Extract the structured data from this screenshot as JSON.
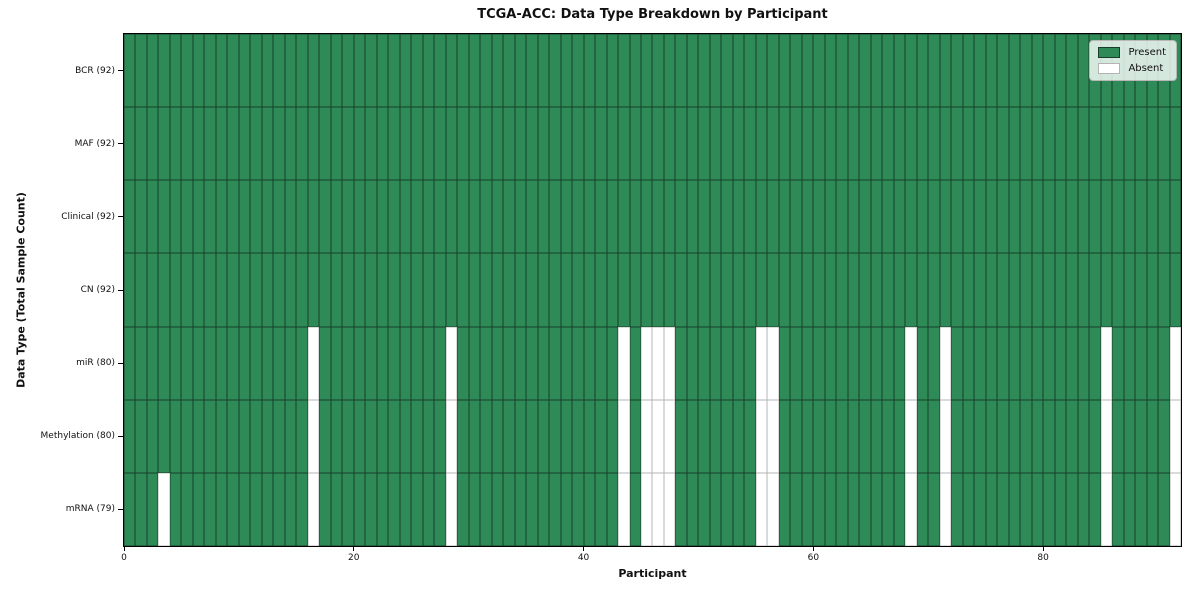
{
  "title": "TCGA-ACC: Data Type Breakdown by Participant",
  "xlabel": "Participant",
  "ylabel": "Data Type (Total Sample Count)",
  "legend": {
    "present_label": "Present",
    "absent_label": "Absent"
  },
  "colors": {
    "present": "#2e8b57",
    "absent": "#ffffff",
    "present_edge": "#173f28",
    "absent_edge": "#b4b4b4"
  },
  "chart_data": {
    "type": "heatmap",
    "title": "TCGA-ACC: Data Type Breakdown by Participant",
    "xlabel": "Participant",
    "ylabel": "Data Type (Total Sample Count)",
    "n_participants": 92,
    "x_range": [
      0,
      92
    ],
    "x_ticks": [
      0,
      20,
      40,
      60,
      80
    ],
    "cell_values_legend": {
      "present": "Present",
      "absent": "Absent"
    },
    "legend_position": "upper right",
    "rows": [
      {
        "label": "BCR (92)",
        "data_type": "BCR",
        "total": 92,
        "absent_participants": []
      },
      {
        "label": "MAF (92)",
        "data_type": "MAF",
        "total": 92,
        "absent_participants": []
      },
      {
        "label": "Clinical (92)",
        "data_type": "Clinical",
        "total": 92,
        "absent_participants": []
      },
      {
        "label": "CN (92)",
        "data_type": "CN",
        "total": 92,
        "absent_participants": []
      },
      {
        "label": "miR (80)",
        "data_type": "miR",
        "total": 80,
        "absent_participants": [
          16,
          28,
          43,
          45,
          46,
          47,
          55,
          56,
          68,
          71,
          85,
          91
        ]
      },
      {
        "label": "Methylation (80)",
        "data_type": "Methylation",
        "total": 80,
        "absent_participants": [
          16,
          28,
          43,
          45,
          46,
          47,
          55,
          56,
          68,
          71,
          85,
          91
        ]
      },
      {
        "label": "mRNA (79)",
        "data_type": "mRNA",
        "total": 79,
        "absent_participants": [
          3,
          16,
          28,
          43,
          45,
          46,
          47,
          55,
          56,
          68,
          71,
          85,
          91
        ]
      }
    ]
  }
}
